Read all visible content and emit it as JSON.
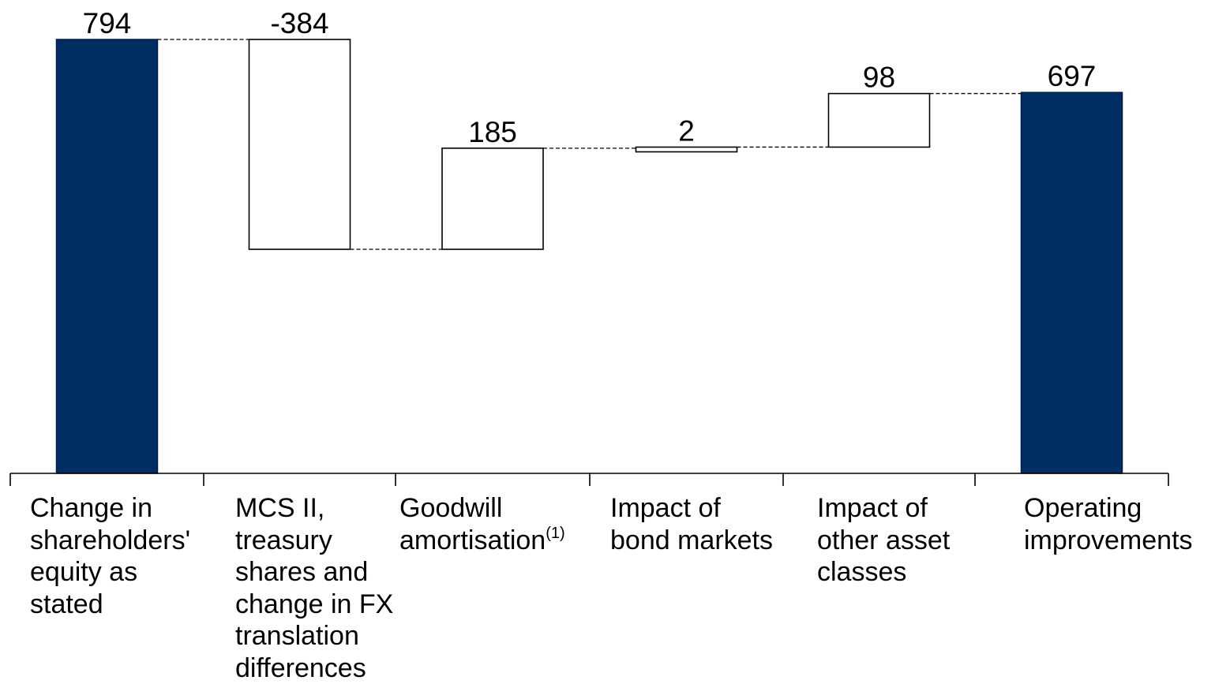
{
  "chart_data": {
    "type": "bar",
    "subtype": "waterfall",
    "title": "",
    "xlabel": "",
    "ylabel": "",
    "ylim": [
      0,
      794
    ],
    "grid": false,
    "legend": "none",
    "colors": {
      "total": "#002D62",
      "step": "#ffffff",
      "stroke": "#000000"
    },
    "categories": [
      "Change in shareholders' equity as stated",
      "MCS II, treasury shares and change in FX translation differences",
      "Goodwill amortisation",
      "Impact of bond markets",
      "Impact of other asset classes",
      "Operating improvements"
    ],
    "values": [
      794,
      -384,
      185,
      2,
      98,
      697
    ],
    "kinds": [
      "total",
      "step",
      "step",
      "step",
      "step",
      "total"
    ],
    "value_labels": [
      "794",
      "-384",
      "185",
      "2",
      "98",
      "697"
    ],
    "footnote_marker": {
      "category_index": 2,
      "text": "(1)"
    },
    "label_lines": [
      [
        "Change in",
        "shareholders'",
        "equity as",
        "stated"
      ],
      [
        "MCS II,",
        "treasury",
        "shares and",
        "change in FX",
        "translation",
        "differences"
      ],
      [
        "Goodwill",
        "amortisation"
      ],
      [
        "Impact of",
        "bond markets"
      ],
      [
        "Impact of",
        "other asset",
        "classes"
      ],
      [
        "Operating",
        "improvements"
      ]
    ]
  }
}
